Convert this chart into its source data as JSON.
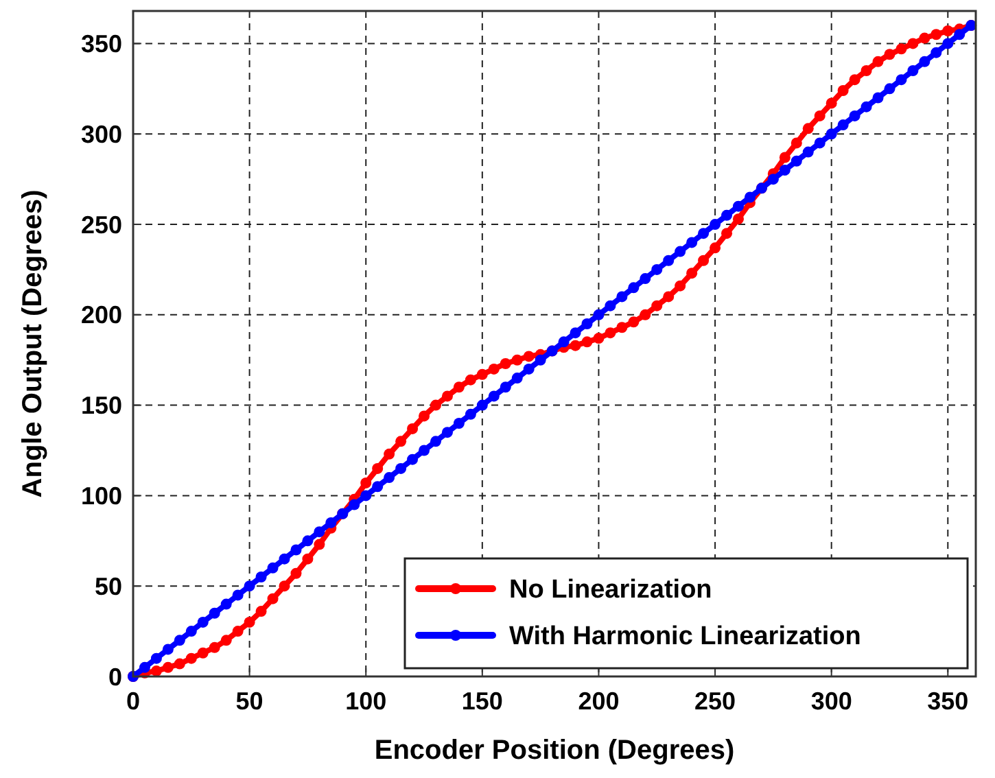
{
  "chart_data": {
    "type": "line",
    "xlabel": "Encoder Position (Degrees)",
    "ylabel": "Angle Output (Degrees)",
    "x": [
      0,
      5,
      10,
      15,
      20,
      25,
      30,
      35,
      40,
      45,
      50,
      55,
      60,
      65,
      70,
      75,
      80,
      85,
      90,
      95,
      100,
      105,
      110,
      115,
      120,
      125,
      130,
      135,
      140,
      145,
      150,
      155,
      160,
      165,
      170,
      175,
      180,
      185,
      190,
      195,
      200,
      205,
      210,
      215,
      220,
      225,
      230,
      235,
      240,
      245,
      250,
      255,
      260,
      265,
      270,
      275,
      280,
      285,
      290,
      295,
      300,
      305,
      310,
      315,
      320,
      325,
      330,
      335,
      340,
      345,
      350,
      355,
      360
    ],
    "series": [
      {
        "name": "No Linearization",
        "color": "#ff0000",
        "values": [
          0,
          2,
          3,
          5,
          7,
          10,
          13,
          16,
          20,
          25,
          30,
          36,
          43,
          50,
          57,
          65,
          73,
          82,
          90,
          98,
          107,
          115,
          123,
          130,
          137,
          144,
          150,
          155,
          160,
          164,
          167,
          170,
          173,
          175,
          177,
          178,
          180,
          182,
          183,
          185,
          187,
          190,
          193,
          196,
          200,
          205,
          210,
          216,
          223,
          230,
          237,
          245,
          253,
          262,
          270,
          278,
          287,
          295,
          303,
          310,
          317,
          324,
          330,
          335,
          340,
          344,
          347,
          350,
          353,
          355,
          357,
          358,
          360
        ]
      },
      {
        "name": "With Harmonic Linearization",
        "color": "#0000ff",
        "values": [
          0,
          5,
          10,
          15,
          20,
          25,
          30,
          35,
          40,
          45,
          50,
          55,
          60,
          65,
          70,
          75,
          80,
          85,
          90,
          95,
          100,
          105,
          110,
          115,
          120,
          125,
          130,
          135,
          140,
          145,
          150,
          155,
          160,
          165,
          170,
          175,
          180,
          185,
          190,
          195,
          200,
          205,
          210,
          215,
          220,
          225,
          230,
          235,
          240,
          245,
          250,
          255,
          260,
          265,
          270,
          275,
          280,
          285,
          290,
          295,
          300,
          305,
          310,
          315,
          320,
          325,
          330,
          335,
          340,
          345,
          350,
          355,
          360
        ]
      }
    ],
    "xlim": [
      0,
      362
    ],
    "ylim": [
      0,
      368
    ],
    "xticks": [
      0,
      50,
      100,
      150,
      200,
      250,
      300,
      350
    ],
    "yticks": [
      0,
      50,
      100,
      150,
      200,
      250,
      300,
      350
    ],
    "grid": true,
    "legend": "bottom right",
    "marker": "circle",
    "line_style": "solid"
  }
}
